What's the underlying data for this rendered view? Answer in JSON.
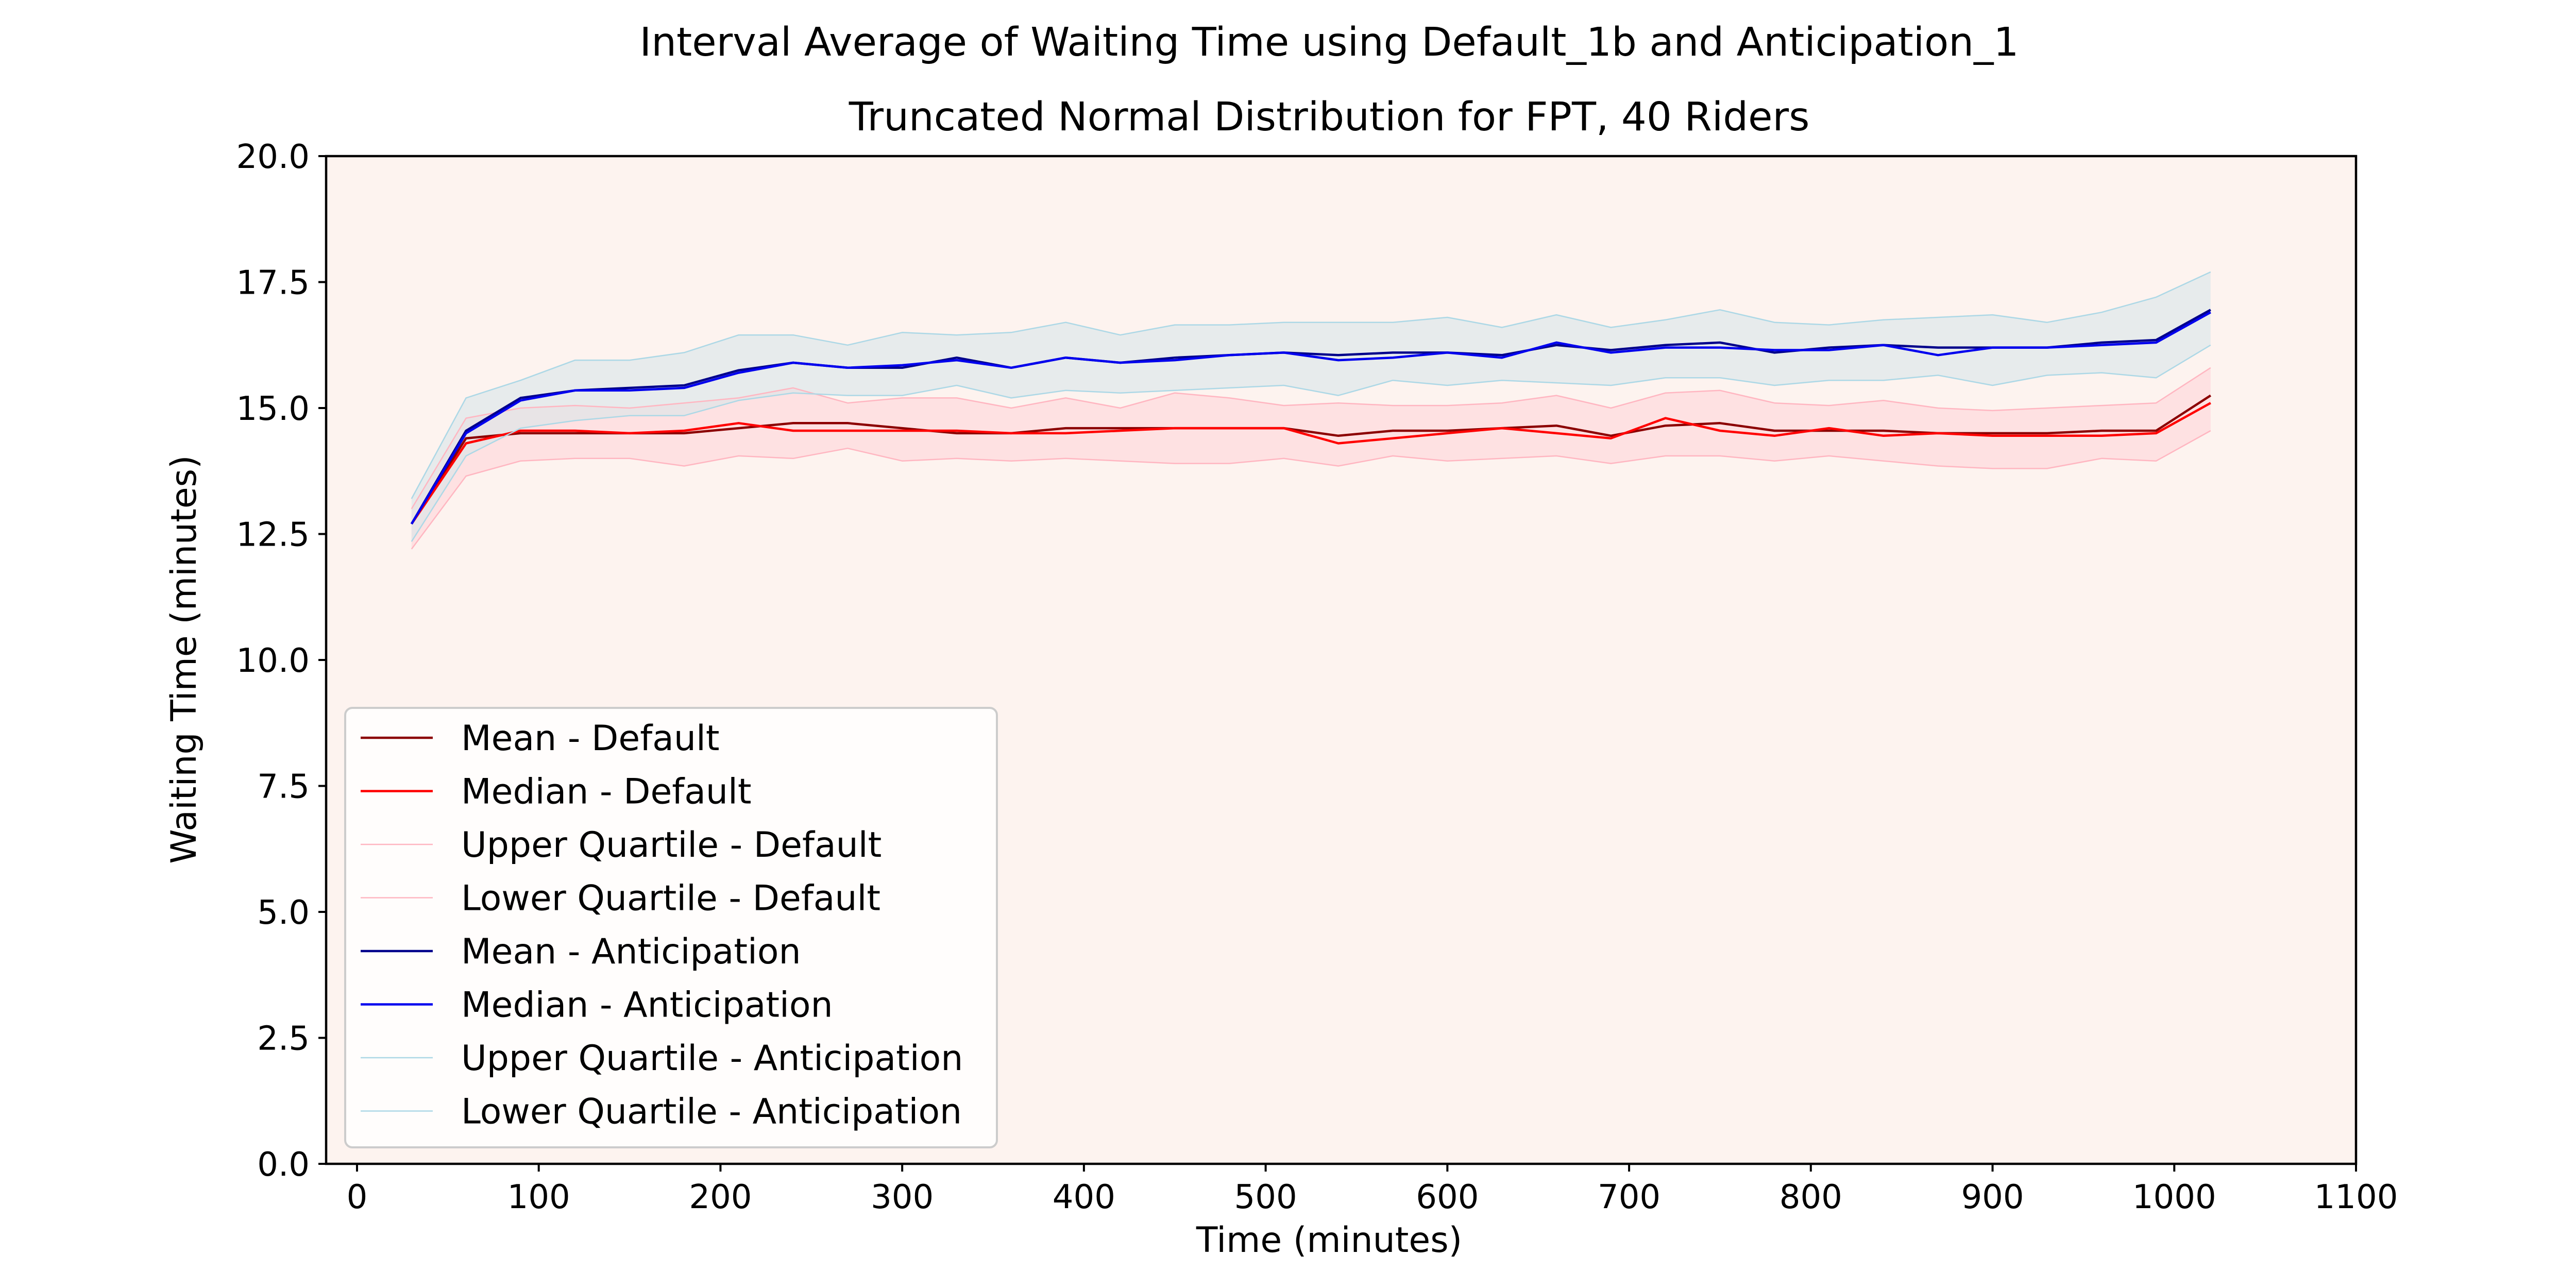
{
  "chart_data": {
    "type": "line",
    "title": "Interval Average of Waiting Time using Default_1b and Anticipation_1",
    "subtitle": "Truncated Normal Distribution for FPT, 40 Riders",
    "xlabel": "Time (minutes)",
    "ylabel": "Waiting Time (minutes)",
    "xlim": [
      -17,
      1100
    ],
    "ylim": [
      0,
      20
    ],
    "xticks": [
      0,
      100,
      200,
      300,
      400,
      500,
      600,
      700,
      800,
      900,
      1000,
      1100
    ],
    "yticks": [
      0.0,
      2.5,
      5.0,
      7.5,
      10.0,
      12.5,
      15.0,
      17.5,
      20.0
    ],
    "xtick_labels": [
      "0",
      "100",
      "200",
      "300",
      "400",
      "500",
      "600",
      "700",
      "800",
      "900",
      "1000",
      "1100"
    ],
    "ytick_labels": [
      "0.0",
      "2.5",
      "5.0",
      "7.5",
      "10.0",
      "12.5",
      "15.0",
      "17.5",
      "20.0"
    ],
    "grid": false,
    "background_color": "#fdf3ef",
    "legend_position": "lower-left",
    "x": [
      30,
      60,
      90,
      120,
      150,
      180,
      210,
      240,
      270,
      300,
      330,
      360,
      390,
      420,
      450,
      480,
      510,
      540,
      570,
      600,
      630,
      660,
      690,
      720,
      750,
      780,
      810,
      840,
      870,
      900,
      930,
      960,
      990,
      1020
    ],
    "series": [
      {
        "name": "Mean - Default",
        "color": "#8b0000",
        "width": 4.5,
        "values": [
          12.7,
          14.4,
          14.5,
          14.5,
          14.5,
          14.5,
          14.6,
          14.7,
          14.7,
          14.6,
          14.5,
          14.5,
          14.6,
          14.6,
          14.6,
          14.6,
          14.6,
          14.45,
          14.55,
          14.55,
          14.6,
          14.65,
          14.45,
          14.65,
          14.7,
          14.55,
          14.55,
          14.55,
          14.5,
          14.5,
          14.5,
          14.55,
          14.55,
          15.25
        ]
      },
      {
        "name": "Median - Default",
        "color": "#ff0000",
        "width": 4.5,
        "values": [
          12.7,
          14.3,
          14.55,
          14.55,
          14.5,
          14.55,
          14.7,
          14.55,
          14.55,
          14.55,
          14.55,
          14.5,
          14.5,
          14.55,
          14.6,
          14.6,
          14.6,
          14.3,
          14.4,
          14.5,
          14.6,
          14.5,
          14.4,
          14.8,
          14.55,
          14.45,
          14.6,
          14.45,
          14.5,
          14.45,
          14.45,
          14.45,
          14.5,
          15.1
        ]
      },
      {
        "name": "Upper Quartile - Default",
        "color": "#ffb6c1",
        "width": 2.5,
        "values": [
          13.0,
          14.8,
          15.0,
          15.05,
          15.0,
          15.1,
          15.2,
          15.4,
          15.1,
          15.2,
          15.2,
          15.0,
          15.2,
          15.0,
          15.3,
          15.2,
          15.05,
          15.1,
          15.05,
          15.05,
          15.1,
          15.25,
          15.0,
          15.3,
          15.35,
          15.1,
          15.05,
          15.15,
          15.0,
          14.95,
          15.0,
          15.05,
          15.1,
          15.8
        ]
      },
      {
        "name": "Lower Quartile - Default",
        "color": "#ffb6c1",
        "width": 2.5,
        "values": [
          12.2,
          13.65,
          13.95,
          14.0,
          14.0,
          13.85,
          14.05,
          14.0,
          14.2,
          13.95,
          14.0,
          13.95,
          14.0,
          13.95,
          13.9,
          13.9,
          14.0,
          13.85,
          14.05,
          13.95,
          14.0,
          14.05,
          13.9,
          14.05,
          14.05,
          13.95,
          14.05,
          13.95,
          13.85,
          13.8,
          13.8,
          14.0,
          13.95,
          14.55
        ]
      },
      {
        "name": "Mean - Anticipation",
        "color": "#00008b",
        "width": 4.5,
        "values": [
          12.7,
          14.55,
          15.2,
          15.35,
          15.4,
          15.45,
          15.75,
          15.9,
          15.8,
          15.8,
          16.0,
          15.8,
          16.0,
          15.9,
          16.0,
          16.05,
          16.1,
          16.05,
          16.1,
          16.1,
          16.05,
          16.25,
          16.15,
          16.25,
          16.3,
          16.1,
          16.2,
          16.25,
          16.2,
          16.2,
          16.2,
          16.3,
          16.35,
          16.95
        ]
      },
      {
        "name": "Median - Anticipation",
        "color": "#0000ee",
        "width": 4.5,
        "values": [
          12.7,
          14.5,
          15.15,
          15.35,
          15.35,
          15.4,
          15.7,
          15.9,
          15.8,
          15.85,
          15.95,
          15.8,
          16.0,
          15.9,
          15.95,
          16.05,
          16.1,
          15.95,
          16.0,
          16.1,
          16.0,
          16.3,
          16.1,
          16.2,
          16.2,
          16.15,
          16.15,
          16.25,
          16.05,
          16.2,
          16.2,
          16.25,
          16.3,
          16.9
        ]
      },
      {
        "name": "Upper Quartile - Anticipation",
        "color": "#add8e6",
        "width": 2.5,
        "values": [
          13.2,
          15.2,
          15.55,
          15.95,
          15.95,
          16.1,
          16.45,
          16.45,
          16.25,
          16.5,
          16.45,
          16.5,
          16.7,
          16.45,
          16.65,
          16.65,
          16.7,
          16.7,
          16.7,
          16.8,
          16.6,
          16.85,
          16.6,
          16.75,
          16.95,
          16.7,
          16.65,
          16.75,
          16.8,
          16.85,
          16.7,
          16.9,
          17.2,
          17.7
        ]
      },
      {
        "name": "Lower Quartile - Anticipation",
        "color": "#add8e6",
        "width": 2.5,
        "values": [
          12.35,
          14.05,
          14.6,
          14.75,
          14.85,
          14.85,
          15.15,
          15.3,
          15.25,
          15.25,
          15.45,
          15.2,
          15.35,
          15.3,
          15.35,
          15.4,
          15.45,
          15.25,
          15.55,
          15.45,
          15.55,
          15.5,
          15.45,
          15.6,
          15.6,
          15.45,
          15.55,
          15.55,
          15.65,
          15.45,
          15.65,
          15.7,
          15.6,
          16.25
        ]
      }
    ],
    "bands": [
      {
        "upper_series": "Upper Quartile - Default",
        "lower_series": "Lower Quartile - Default",
        "color": "#ffc0cb",
        "opacity": 0.35
      },
      {
        "upper_series": "Upper Quartile - Anticipation",
        "lower_series": "Lower Quartile - Anticipation",
        "color": "#d9e6ea",
        "opacity": 0.6
      }
    ]
  }
}
